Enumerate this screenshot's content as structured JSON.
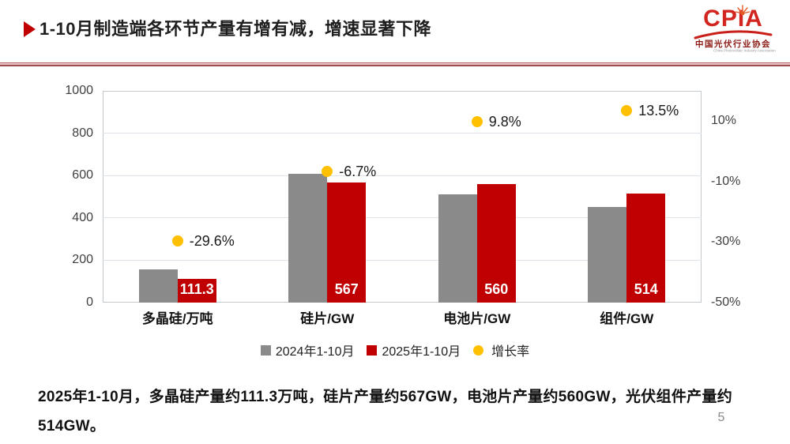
{
  "header": {
    "title": "1-10月制造端各环节产量有增有减，增速显著下降"
  },
  "logo": {
    "acronym": "CPIA",
    "name_cn": "中国光伏行业协会",
    "name_en": "China Photovoltaic Industry Association"
  },
  "chart_data": {
    "type": "bar",
    "categories": [
      "多晶硅/万吨",
      "硅片/GW",
      "电池片/GW",
      "组件/GW"
    ],
    "series": [
      {
        "name": "2024年1-10月",
        "color": "#8a8a8a",
        "values": [
          158,
          608,
          510,
          453
        ]
      },
      {
        "name": "2025年1-10月",
        "color": "#c00000",
        "values": [
          111.3,
          567,
          560,
          514
        ],
        "labels": [
          "111.3",
          "567",
          "560",
          "514"
        ]
      }
    ],
    "growth": {
      "name": "增长率",
      "color": "#ffc000",
      "values": [
        -29.6,
        -6.7,
        9.8,
        13.5
      ],
      "labels": [
        "-29.6%",
        "-6.7%",
        "9.8%",
        "13.5%"
      ]
    },
    "left_axis": {
      "min": 0,
      "max": 1000,
      "ticks": [
        0,
        200,
        400,
        600,
        800,
        1000
      ]
    },
    "right_axis": {
      "min": -50,
      "max": 20,
      "ticks": [
        10,
        -10,
        -30,
        -50
      ],
      "tick_labels": [
        "10%",
        "-10%",
        "-30%",
        "-50%"
      ]
    },
    "grid": true,
    "legend_position": "bottom"
  },
  "summary": {
    "text": "2025年1-10月，多晶硅产量约111.3万吨，硅片产量约567GW，电池片产量约560GW，光伏组件产量约514GW。"
  },
  "page": {
    "number": "5"
  }
}
